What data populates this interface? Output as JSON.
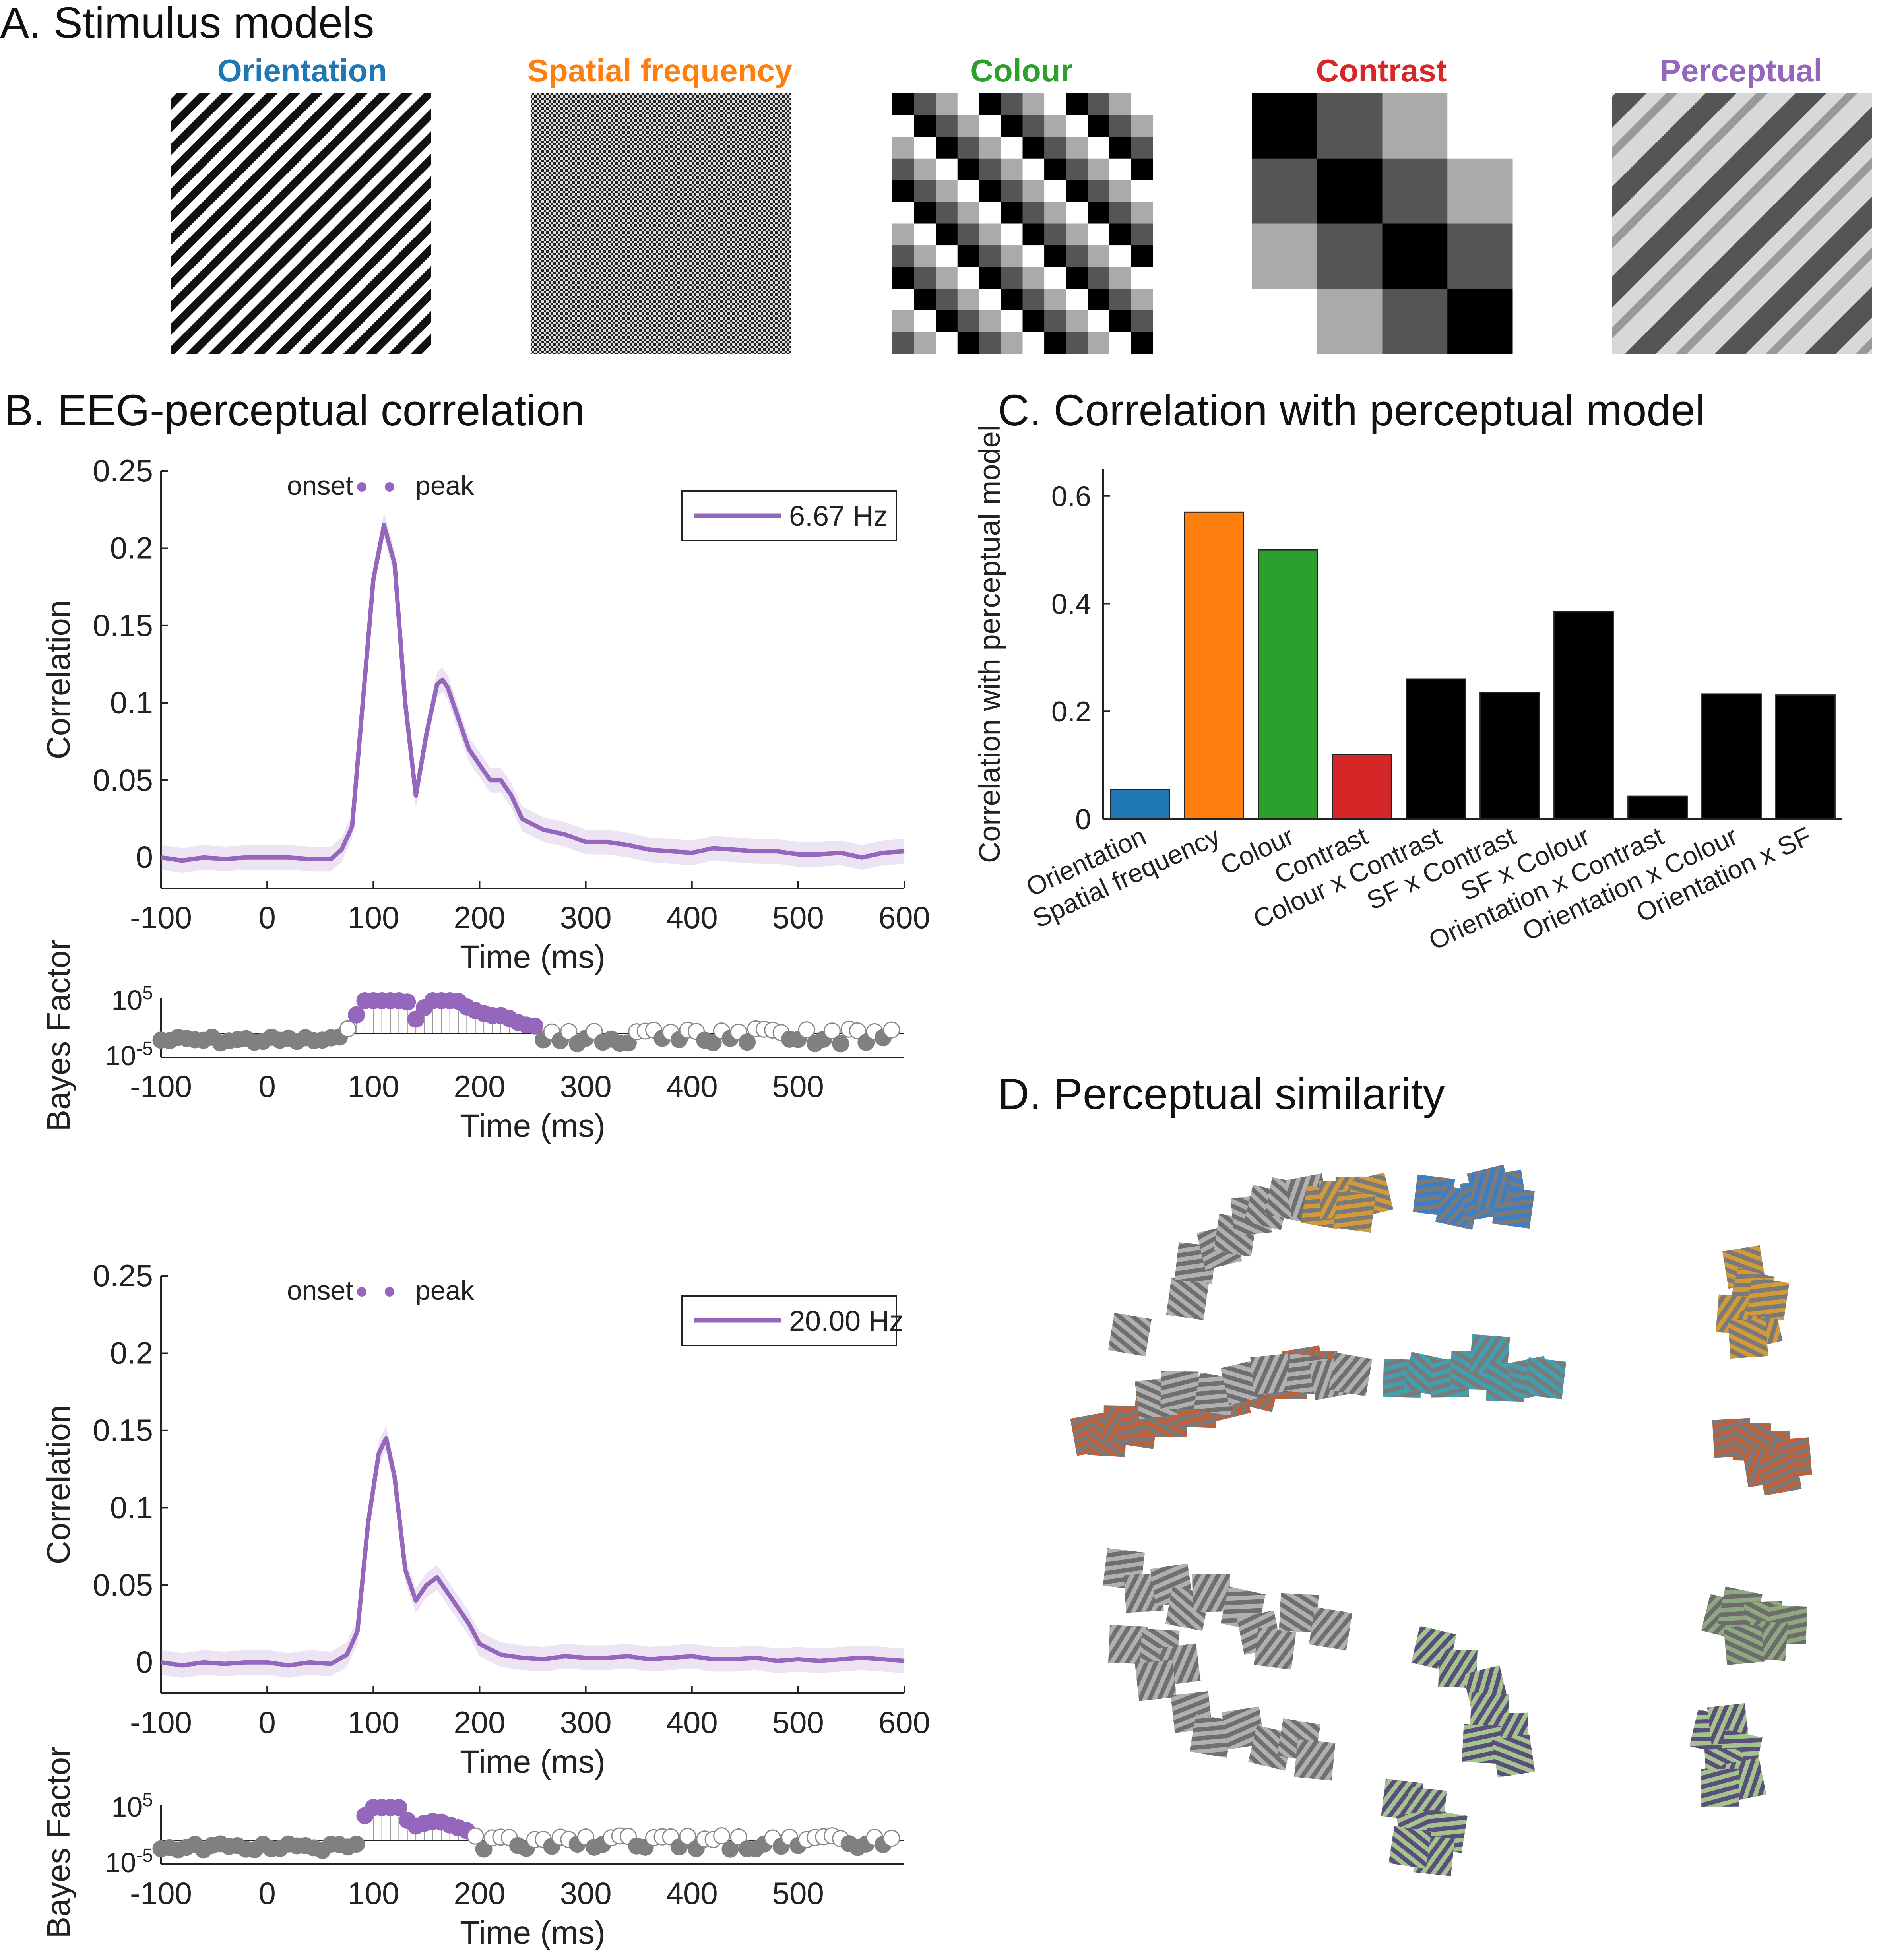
{
  "colors": {
    "orientation": "#1f77b4",
    "spatial_frequency": "#ff7f0e",
    "colour": "#2ca02c",
    "contrast": "#d62728",
    "perceptual": "#9467bd",
    "black": "#000000",
    "grey": "#808080"
  },
  "panel_a": {
    "title": "A. Stimulus models",
    "models": [
      "Orientation",
      "Spatial frequency",
      "Colour",
      "Contrast",
      "Perceptual"
    ]
  },
  "panel_b": {
    "title": "B. EEG-perceptual correlation"
  },
  "panel_c": {
    "title": "C. Correlation with perceptual model"
  },
  "panel_d": {
    "title": "D. Perceptual similarity"
  },
  "chart_data": [
    {
      "id": "b1",
      "type": "line",
      "title": "",
      "xlabel": "Time (ms)",
      "ylabel": "Correlation",
      "xlim": [
        -100,
        600
      ],
      "ylim": [
        -0.02,
        0.25
      ],
      "xticks": [
        -100,
        0,
        100,
        200,
        300,
        400,
        500,
        600
      ],
      "yticks": [
        0,
        0.05,
        0.1,
        0.15,
        0.2,
        0.25
      ],
      "legend": "6.67 Hz",
      "marker_label_left": "onset",
      "marker_label_right": "peak",
      "series": [
        {
          "name": "6.67 Hz",
          "x": [
            -100,
            -80,
            -60,
            -40,
            -20,
            0,
            20,
            40,
            60,
            70,
            80,
            90,
            100,
            110,
            120,
            130,
            140,
            150,
            160,
            165,
            170,
            180,
            190,
            200,
            210,
            220,
            230,
            240,
            260,
            280,
            300,
            320,
            340,
            360,
            380,
            400,
            420,
            440,
            460,
            480,
            500,
            520,
            540,
            560,
            580,
            600
          ],
          "y": [
            0,
            -0.002,
            0,
            -0.001,
            0,
            0,
            0,
            -0.001,
            -0.001,
            0.005,
            0.02,
            0.1,
            0.18,
            0.215,
            0.19,
            0.1,
            0.04,
            0.08,
            0.112,
            0.115,
            0.11,
            0.09,
            0.07,
            0.06,
            0.05,
            0.05,
            0.04,
            0.025,
            0.018,
            0.015,
            0.01,
            0.01,
            0.008,
            0.005,
            0.004,
            0.003,
            0.006,
            0.005,
            0.004,
            0.004,
            0.002,
            0.002,
            0.003,
            0,
            0.003,
            0.004
          ]
        }
      ],
      "bf_xticks": [
        -100,
        0,
        100,
        200,
        300,
        400,
        500
      ],
      "bf_ylabel": "Bayes Factor",
      "bf_yticks": [
        "10^5",
        "10^-5"
      ],
      "bf_xlabel": "Time (ms)"
    },
    {
      "id": "b2",
      "type": "line",
      "title": "",
      "xlabel": "Time (ms)",
      "ylabel": "Correlation",
      "xlim": [
        -100,
        600
      ],
      "ylim": [
        -0.02,
        0.25
      ],
      "xticks": [
        -100,
        0,
        100,
        200,
        300,
        400,
        500,
        600
      ],
      "yticks": [
        0,
        0.05,
        0.1,
        0.15,
        0.2,
        0.25
      ],
      "legend": "20.00 Hz",
      "marker_label_left": "onset",
      "marker_label_right": "peak",
      "series": [
        {
          "name": "20.00 Hz",
          "x": [
            -100,
            -80,
            -60,
            -40,
            -20,
            0,
            20,
            40,
            60,
            75,
            85,
            95,
            105,
            112,
            120,
            130,
            140,
            150,
            160,
            170,
            180,
            190,
            200,
            220,
            240,
            260,
            280,
            300,
            320,
            340,
            360,
            380,
            400,
            420,
            440,
            460,
            480,
            500,
            520,
            540,
            560,
            580,
            600
          ],
          "y": [
            0,
            -0.002,
            0,
            -0.001,
            0,
            0,
            -0.002,
            0,
            -0.001,
            0.005,
            0.02,
            0.09,
            0.135,
            0.145,
            0.12,
            0.06,
            0.04,
            0.05,
            0.055,
            0.045,
            0.035,
            0.025,
            0.012,
            0.005,
            0.003,
            0.002,
            0.004,
            0.003,
            0.003,
            0.004,
            0.002,
            0.003,
            0.004,
            0.002,
            0.002,
            0.003,
            0.001,
            0.002,
            0.001,
            0.002,
            0.003,
            0.002,
            0.001
          ]
        }
      ],
      "bf_xticks": [
        -100,
        0,
        100,
        200,
        300,
        400,
        500
      ],
      "bf_ylabel": "Bayes Factor",
      "bf_yticks": [
        "10^5",
        "10^-5"
      ],
      "bf_xlabel": "Time (ms)"
    },
    {
      "id": "c",
      "type": "bar",
      "title": "",
      "ylabel": "Correlation with perceptual model",
      "ylim": [
        0,
        0.65
      ],
      "yticks": [
        0,
        0.2,
        0.4,
        0.6
      ],
      "categories": [
        "Orientation",
        "Spatial frequency",
        "Colour",
        "Contrast",
        "Colour x Contrast",
        "SF x Contrast",
        "SF x Colour",
        "Orientation x Contrast",
        "Orientation x Colour",
        "Orientation x SF"
      ],
      "values": [
        0.055,
        0.57,
        0.5,
        0.12,
        0.26,
        0.235,
        0.385,
        0.042,
        0.232,
        0.23
      ],
      "bar_colors": [
        "#1f77b4",
        "#ff7f0e",
        "#2ca02c",
        "#d62728",
        "#000000",
        "#000000",
        "#000000",
        "#000000",
        "#000000",
        "#000000"
      ]
    }
  ]
}
